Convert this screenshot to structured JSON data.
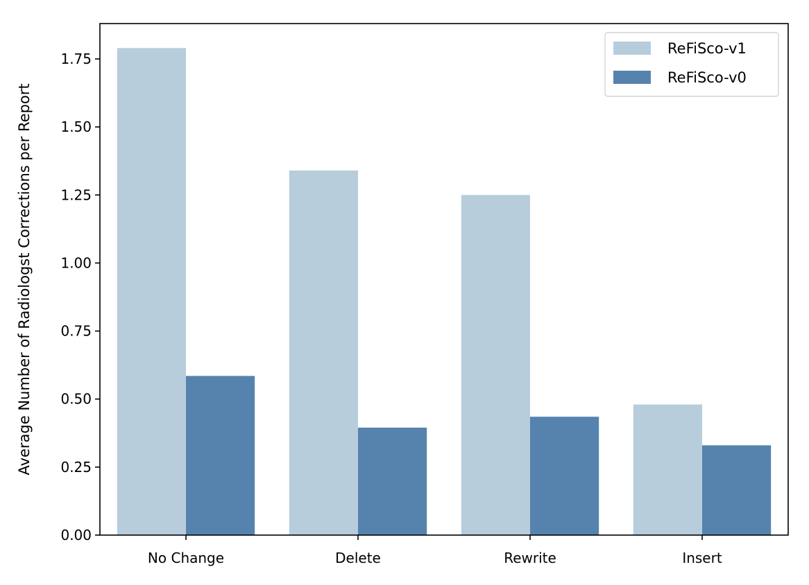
{
  "chart_data": {
    "type": "bar",
    "categories": [
      "No Change",
      "Delete",
      "Rewrite",
      "Insert"
    ],
    "series": [
      {
        "name": "ReFiSco-v1",
        "values": [
          1.79,
          1.34,
          1.25,
          0.48
        ],
        "color": "#b7cddc"
      },
      {
        "name": "ReFiSco-v0",
        "values": [
          0.585,
          0.395,
          0.435,
          0.33
        ],
        "color": "#5583ad"
      }
    ],
    "xlabel": "",
    "ylabel": "Average Number of Radiologst Corrections per Report",
    "ylim": [
      0,
      1.88
    ],
    "yticks": [
      "0.00",
      "0.25",
      "0.50",
      "0.75",
      "1.00",
      "1.25",
      "1.50",
      "1.75"
    ],
    "grid": false,
    "legend_position": "top-right"
  }
}
